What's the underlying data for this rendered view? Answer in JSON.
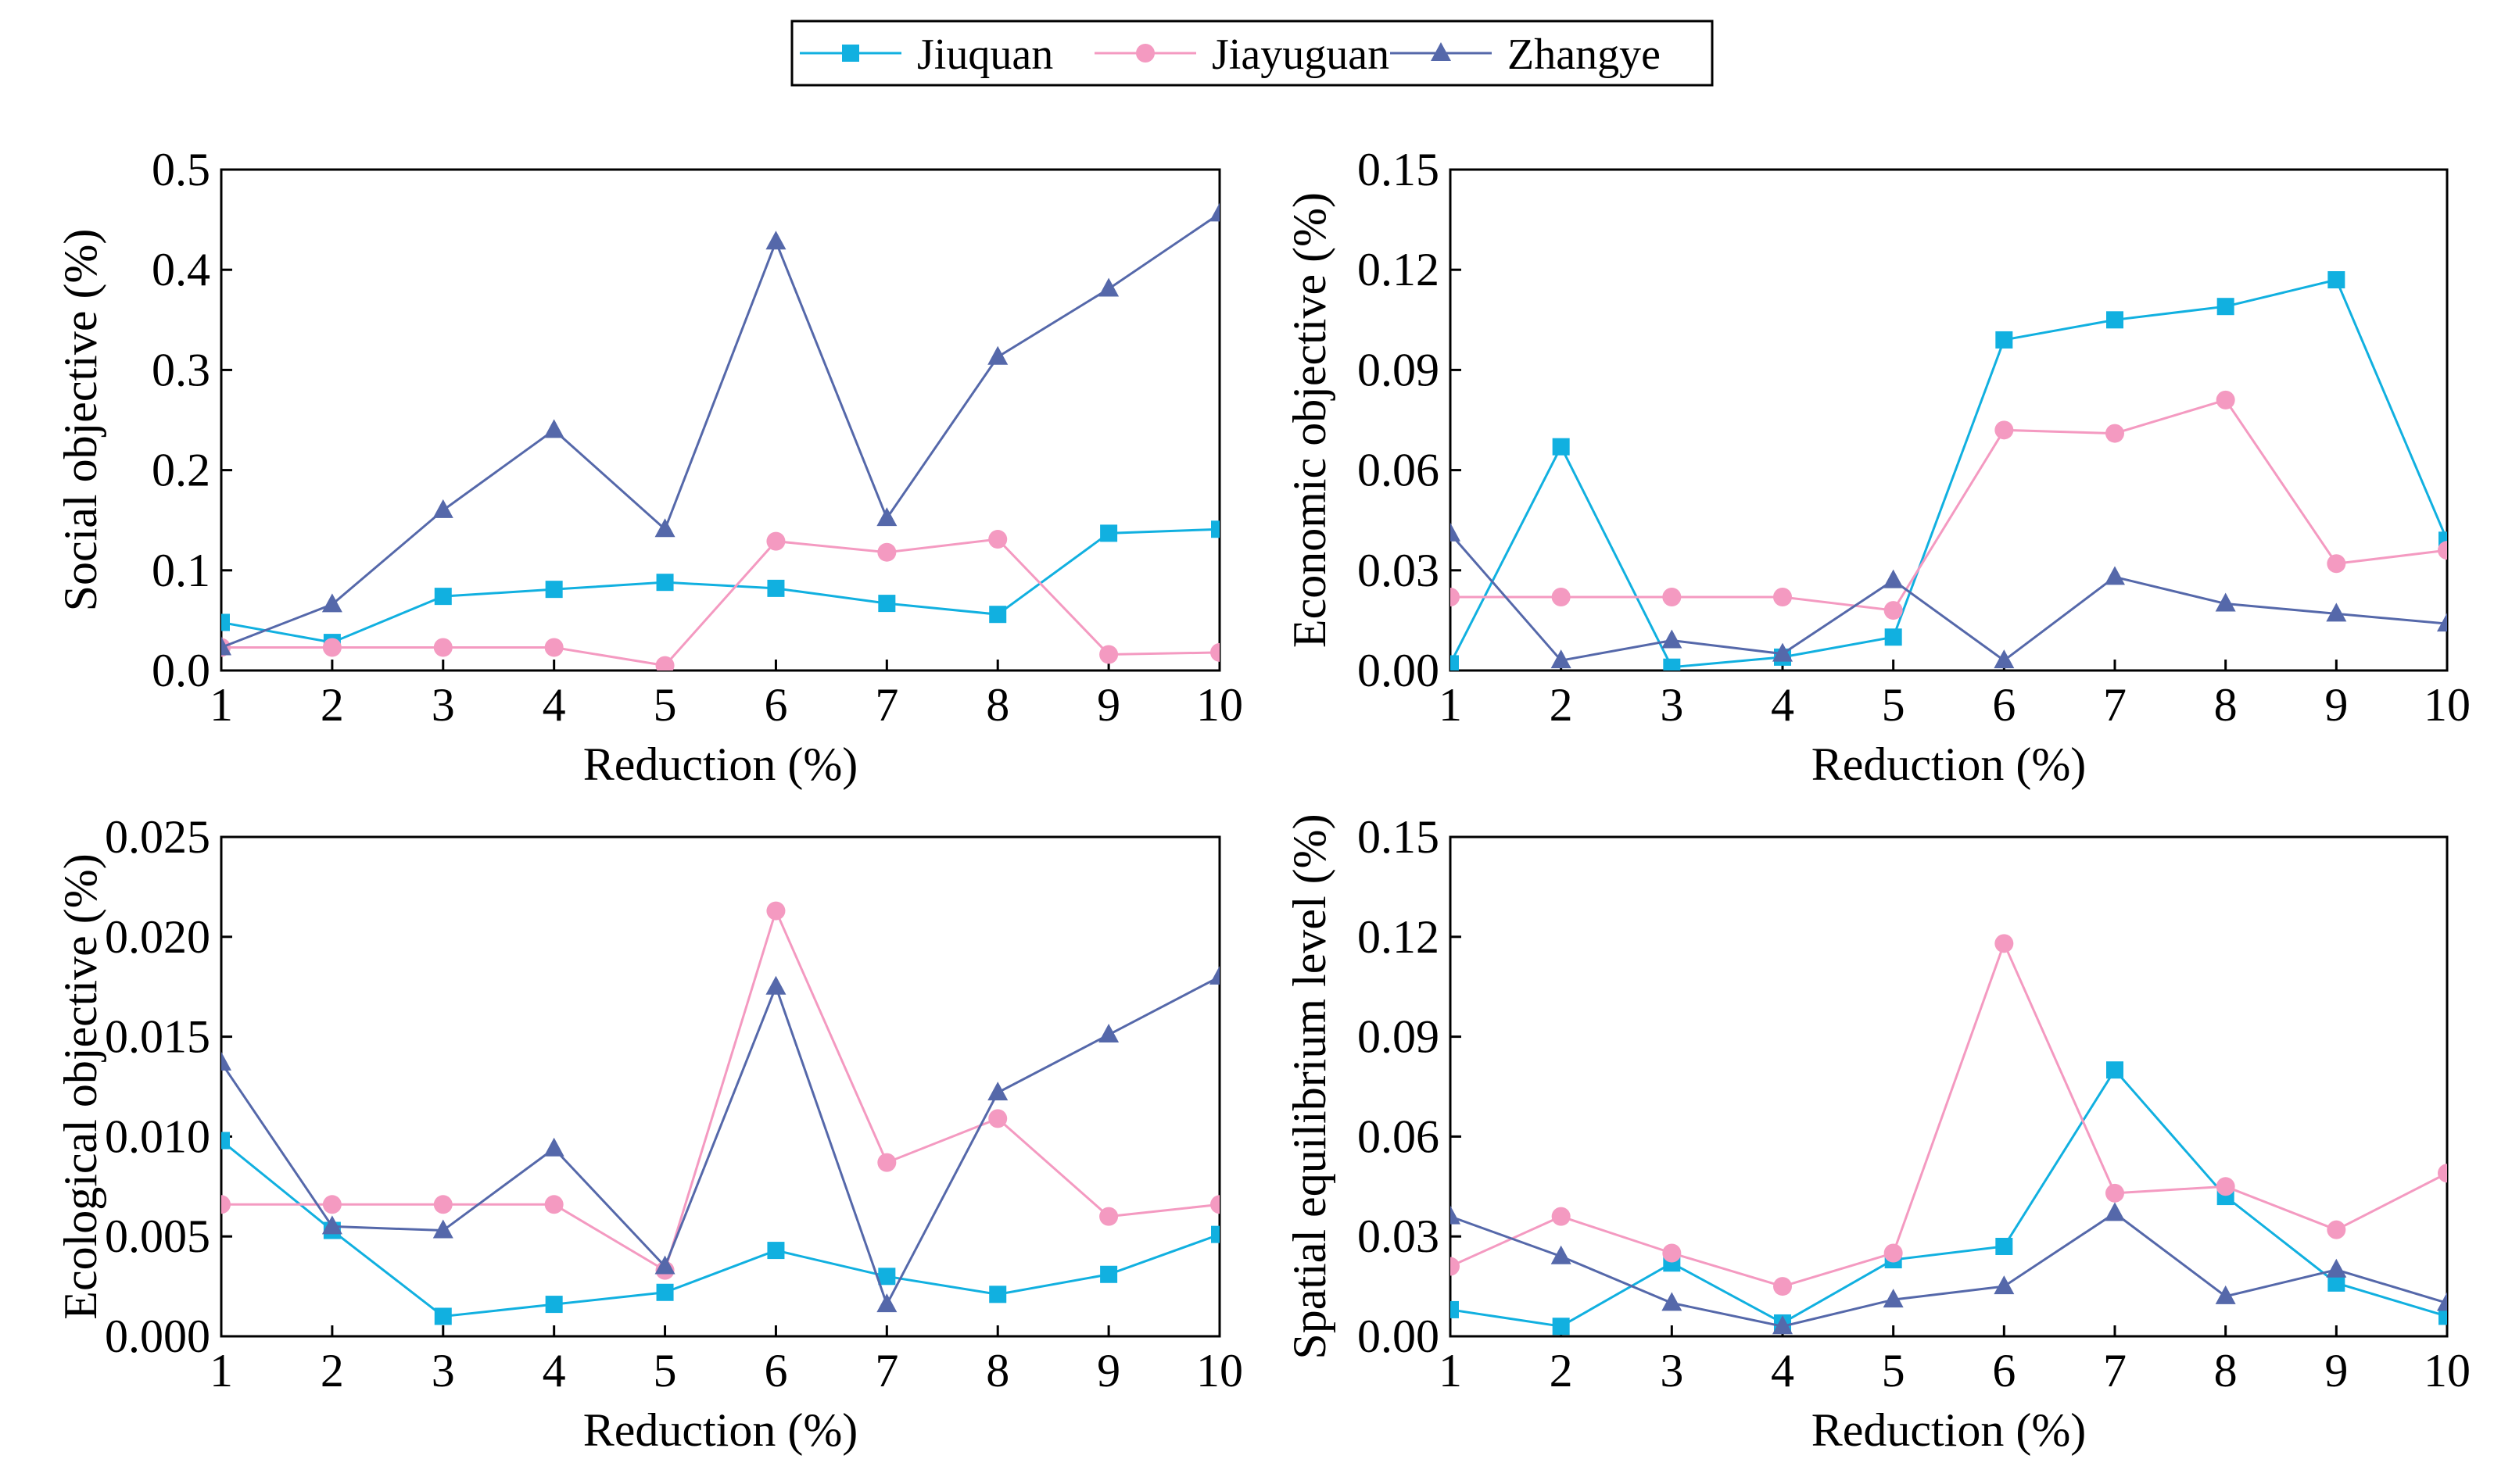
{
  "series_meta": [
    {
      "name": "Jiuquan",
      "color": "#11B0E0",
      "marker": "square"
    },
    {
      "name": "Jiayuguan",
      "color": "#F49AC1",
      "marker": "circle"
    },
    {
      "name": "Zhangye",
      "color": "#5568AA",
      "marker": "triangle"
    }
  ],
  "chart_data": [
    {
      "type": "line",
      "title": "",
      "xlabel": "Reduction (%)",
      "ylabel": "Social objective (%)",
      "x": [
        1,
        2,
        3,
        4,
        5,
        6,
        7,
        8,
        9,
        10
      ],
      "xlim": [
        1,
        10
      ],
      "ylim": [
        0,
        0.5
      ],
      "yticks": [
        "0.0",
        "0.1",
        "0.2",
        "0.3",
        "0.4",
        "0.5"
      ],
      "xticks": [
        "1",
        "2",
        "3",
        "4",
        "5",
        "6",
        "7",
        "8",
        "9",
        "10"
      ],
      "series": [
        {
          "name": "Jiuquan",
          "values": [
            0.048,
            0.028,
            0.074,
            0.081,
            0.088,
            0.082,
            0.067,
            0.056,
            0.137,
            0.141
          ]
        },
        {
          "name": "Jiayuguan",
          "values": [
            0.023,
            0.023,
            0.023,
            0.023,
            0.005,
            0.129,
            0.118,
            0.131,
            0.016,
            0.018
          ]
        },
        {
          "name": "Zhangye",
          "values": [
            0.023,
            0.066,
            0.16,
            0.24,
            0.141,
            0.428,
            0.152,
            0.313,
            0.381,
            0.456
          ]
        }
      ]
    },
    {
      "type": "line",
      "title": "",
      "xlabel": "Reduction (%)",
      "ylabel": "Economic objective (%)",
      "x": [
        1,
        2,
        3,
        4,
        5,
        6,
        7,
        8,
        9,
        10
      ],
      "xlim": [
        1,
        10
      ],
      "ylim": [
        0,
        0.15
      ],
      "yticks": [
        "0.00",
        "0.03",
        "0.06",
        "0.09",
        "0.12",
        "0.15"
      ],
      "xticks": [
        "1",
        "2",
        "3",
        "4",
        "5",
        "6",
        "7",
        "8",
        "9",
        "10"
      ],
      "series": [
        {
          "name": "Jiuquan",
          "values": [
            0.002,
            0.067,
            0.001,
            0.004,
            0.01,
            0.099,
            0.105,
            0.109,
            0.117,
            0.039
          ]
        },
        {
          "name": "Jiayuguan",
          "values": [
            0.022,
            0.022,
            0.022,
            0.022,
            0.018,
            0.072,
            0.071,
            0.081,
            0.032,
            0.036
          ]
        },
        {
          "name": "Zhangye",
          "values": [
            0.041,
            0.003,
            0.009,
            0.005,
            0.027,
            0.003,
            0.028,
            0.02,
            0.017,
            0.014
          ]
        }
      ]
    },
    {
      "type": "line",
      "title": "",
      "xlabel": "Reduction (%)",
      "ylabel": "Ecological objective (%)",
      "x": [
        1,
        2,
        3,
        4,
        5,
        6,
        7,
        8,
        9,
        10
      ],
      "xlim": [
        1,
        10
      ],
      "ylim": [
        0,
        0.025
      ],
      "yticks": [
        "0.000",
        "0.005",
        "0.010",
        "0.015",
        "0.020",
        "0.025"
      ],
      "xticks": [
        "1",
        "2",
        "3",
        "4",
        "5",
        "6",
        "7",
        "8",
        "9",
        "10"
      ],
      "series": [
        {
          "name": "Jiuquan",
          "values": [
            0.0098,
            0.0053,
            0.001,
            0.0016,
            0.0022,
            0.0043,
            0.003,
            0.0021,
            0.0031,
            0.0051
          ]
        },
        {
          "name": "Jiayuguan",
          "values": [
            0.0066,
            0.0066,
            0.0066,
            0.0066,
            0.0033,
            0.0213,
            0.0087,
            0.0109,
            0.006,
            0.0066
          ]
        },
        {
          "name": "Zhangye",
          "values": [
            0.0137,
            0.0055,
            0.0053,
            0.0094,
            0.0035,
            0.0175,
            0.0016,
            0.0122,
            0.0151,
            0.018
          ]
        }
      ]
    },
    {
      "type": "line",
      "title": "",
      "xlabel": "Reduction (%)",
      "ylabel": "Spatial equilibrium level (%)",
      "x": [
        1,
        2,
        3,
        4,
        5,
        6,
        7,
        8,
        9,
        10
      ],
      "xlim": [
        1,
        10
      ],
      "ylim": [
        0,
        0.15
      ],
      "yticks": [
        "0.00",
        "0.03",
        "0.06",
        "0.09",
        "0.12",
        "0.15"
      ],
      "xticks": [
        "1",
        "2",
        "3",
        "4",
        "5",
        "6",
        "7",
        "8",
        "9",
        "10"
      ],
      "series": [
        {
          "name": "Jiuquan",
          "values": [
            0.008,
            0.003,
            0.022,
            0.004,
            0.023,
            0.027,
            0.08,
            0.042,
            0.016,
            0.006
          ]
        },
        {
          "name": "Jiayuguan",
          "values": [
            0.021,
            0.036,
            0.025,
            0.015,
            0.025,
            0.118,
            0.043,
            0.045,
            0.032,
            0.049
          ]
        },
        {
          "name": "Zhangye",
          "values": [
            0.036,
            0.024,
            0.01,
            0.003,
            0.011,
            0.015,
            0.037,
            0.012,
            0.02,
            0.01
          ]
        }
      ]
    }
  ]
}
